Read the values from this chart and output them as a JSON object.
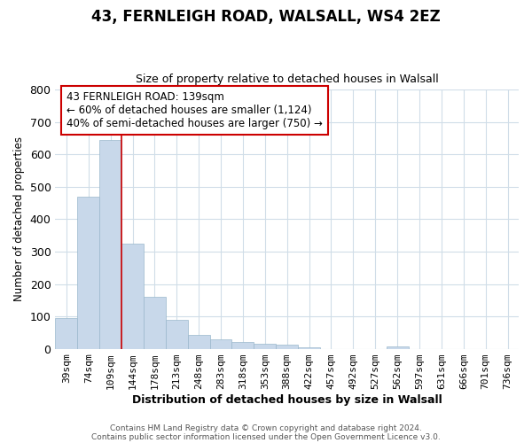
{
  "title1": "43, FERNLEIGH ROAD, WALSALL, WS4 2EZ",
  "title2": "Size of property relative to detached houses in Walsall",
  "xlabel": "Distribution of detached houses by size in Walsall",
  "ylabel": "Number of detached properties",
  "bin_labels": [
    "39sqm",
    "74sqm",
    "109sqm",
    "144sqm",
    "178sqm",
    "213sqm",
    "248sqm",
    "283sqm",
    "318sqm",
    "353sqm",
    "388sqm",
    "422sqm",
    "457sqm",
    "492sqm",
    "527sqm",
    "562sqm",
    "597sqm",
    "631sqm",
    "666sqm",
    "701sqm",
    "736sqm"
  ],
  "bar_values": [
    95,
    470,
    645,
    325,
    160,
    90,
    43,
    28,
    22,
    15,
    13,
    5,
    0,
    0,
    0,
    8,
    0,
    0,
    0,
    0,
    0
  ],
  "bar_color": "#c8d8ea",
  "bar_edge_color": "#9ab8cc",
  "property_line_x": 3,
  "property_line_color": "#cc0000",
  "ylim": [
    0,
    800
  ],
  "yticks": [
    0,
    100,
    200,
    300,
    400,
    500,
    600,
    700,
    800
  ],
  "annotation_box_text": "43 FERNLEIGH ROAD: 139sqm\n← 60% of detached houses are smaller (1,124)\n40% of semi-detached houses are larger (750) →",
  "annotation_box_color": "#cc0000",
  "footer1": "Contains HM Land Registry data © Crown copyright and database right 2024.",
  "footer2": "Contains public sector information licensed under the Open Government Licence v3.0.",
  "background_color": "#ffffff",
  "grid_color": "#d0dde8",
  "title1_fontsize": 12,
  "title2_fontsize": 9
}
